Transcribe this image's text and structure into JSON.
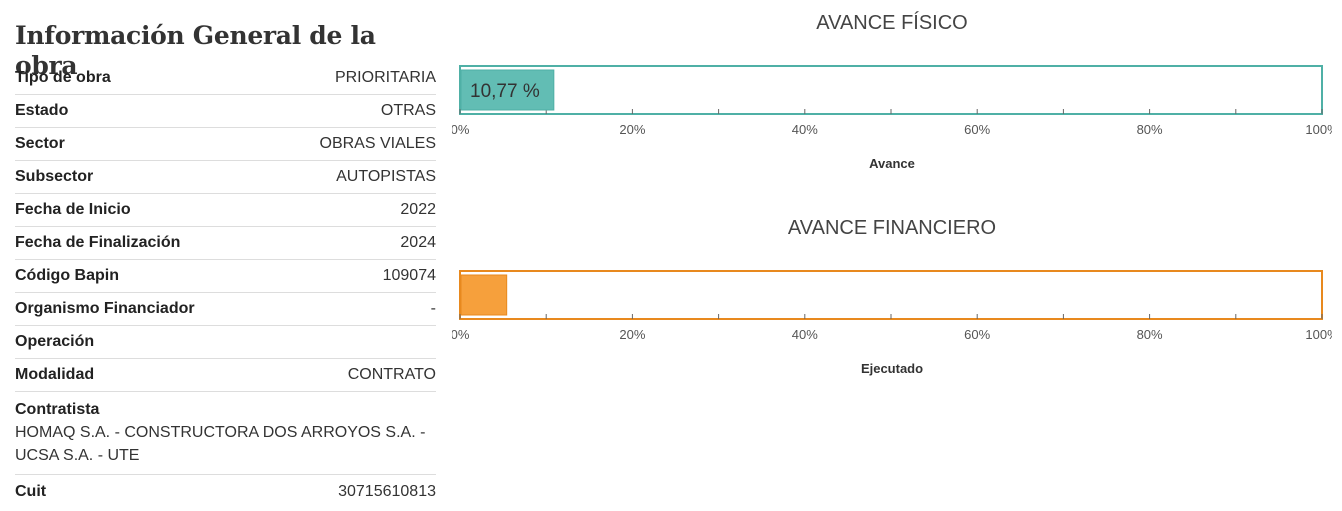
{
  "info": {
    "title": "Información General de la obra",
    "rows": [
      {
        "label": "Tipo de obra",
        "value": "PRIORITARIA"
      },
      {
        "label": "Estado",
        "value": "OTRAS"
      },
      {
        "label": "Sector",
        "value": "OBRAS VIALES"
      },
      {
        "label": "Subsector",
        "value": "AUTOPISTAS"
      },
      {
        "label": "Fecha de Inicio",
        "value": "2022"
      },
      {
        "label": "Fecha de Finalización",
        "value": "2024"
      },
      {
        "label": "Código Bapin",
        "value": "109074"
      },
      {
        "label": "Organismo Financiador",
        "value": "-"
      },
      {
        "label": "Operación",
        "value": ""
      },
      {
        "label": "Modalidad",
        "value": "CONTRATO"
      },
      {
        "label": "Contratista",
        "value": "HOMAQ S.A. - CONSTRUCTORA DOS ARROYOS S.A. - UCSA S.A. - UTE"
      },
      {
        "label": "Cuit",
        "value": "30715610813"
      }
    ]
  },
  "chart_data": [
    {
      "type": "bar",
      "title": "AVANCE FÍSICO",
      "xlabel": "Avance",
      "values": [
        10.77
      ],
      "value_label": "10,77 %",
      "xlim": [
        0,
        100
      ],
      "ticks": [
        "0%",
        "20%",
        "40%",
        "60%",
        "80%",
        "100%"
      ],
      "color": "#62bdb4",
      "border_color": "#4fb0a6"
    },
    {
      "type": "bar",
      "title": "AVANCE FINANCIERO",
      "xlabel": "Ejecutado",
      "values": [
        5.3
      ],
      "value_label": "",
      "xlim": [
        0,
        100
      ],
      "ticks": [
        "0%",
        "20%",
        "40%",
        "60%",
        "80%",
        "100%"
      ],
      "color": "#f6a03c",
      "border_color": "#e8891e"
    }
  ]
}
